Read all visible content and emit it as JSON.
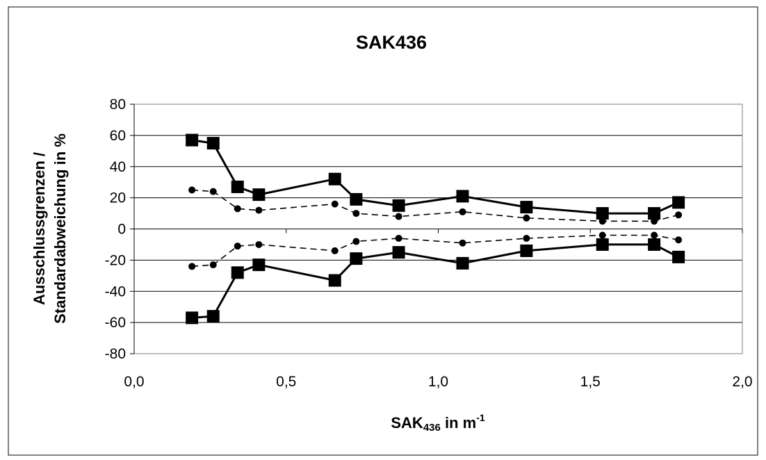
{
  "chart_data": {
    "type": "line",
    "title": "SAK436",
    "xlabel": {
      "main": "SAK",
      "subscript": "436",
      "rest": " in m",
      "superscript": "-1"
    },
    "ylabel": [
      "Ausschlussgrenzen /",
      "Standardabweichung in %"
    ],
    "xlim": [
      0,
      2
    ],
    "ylim": [
      -80,
      80
    ],
    "x_ticks": [
      0,
      0.5,
      1.0,
      1.5,
      2.0
    ],
    "x_tick_labels": [
      "0,0",
      "0,5",
      "1,0",
      "1,5",
      "2,0"
    ],
    "y_ticks": [
      80,
      60,
      40,
      20,
      0,
      -20,
      -40,
      -60,
      -80
    ],
    "y_tick_labels": [
      "80",
      "60",
      "40",
      "20",
      "0",
      "-20",
      "-40",
      "-60",
      "-80"
    ],
    "grid": "horizontal",
    "legend": "none",
    "x": [
      0.19,
      0.26,
      0.34,
      0.41,
      0.66,
      0.73,
      0.87,
      1.08,
      1.29,
      1.54,
      1.71,
      1.79
    ],
    "series": [
      {
        "style": "solid-square",
        "values": [
          57,
          55,
          27,
          22,
          32,
          19,
          15,
          21,
          14,
          10,
          10,
          17
        ]
      },
      {
        "style": "dashed-dot",
        "values": [
          25,
          24,
          13,
          12,
          16,
          10,
          8,
          11,
          7,
          5,
          5,
          9
        ]
      },
      {
        "style": "dashed-dot",
        "values": [
          -24,
          -23,
          -11,
          -10,
          -14,
          -8,
          -6,
          -9,
          -6,
          -4,
          -4,
          -7
        ]
      },
      {
        "style": "solid-square",
        "values": [
          -57,
          -56,
          -28,
          -23,
          -33,
          -19,
          -15,
          -22,
          -14,
          -10,
          -10,
          -18
        ]
      }
    ]
  }
}
